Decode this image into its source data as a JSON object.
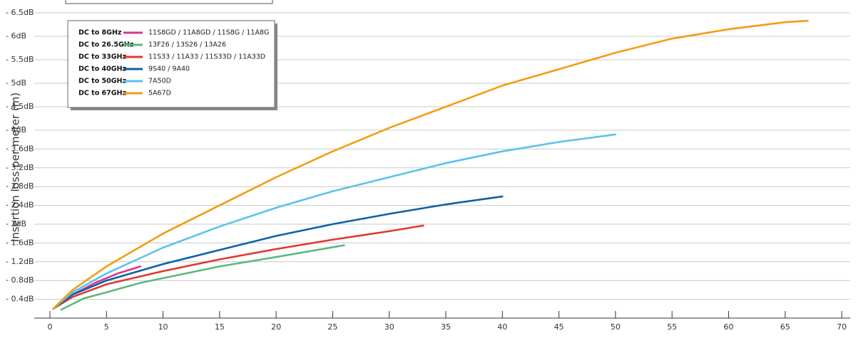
{
  "chart_data": {
    "type": "line",
    "y_label": "Insertion loss per meter (m)",
    "xlim": [
      0,
      70
    ],
    "xticks": [
      0,
      5,
      10,
      15,
      20,
      25,
      30,
      35,
      40,
      45,
      50,
      55,
      60,
      65,
      70
    ],
    "ylim": [
      0,
      -6.5
    ],
    "yticks": [
      {
        "value": -0.4,
        "label": "- 0.4dB"
      },
      {
        "value": -0.8,
        "label": "- 0.8dB"
      },
      {
        "value": -1.2,
        "label": "- 1.2dB"
      },
      {
        "value": -1.6,
        "label": "- 1.6dB"
      },
      {
        "value": -2,
        "label": "- 2dB"
      },
      {
        "value": -2.4,
        "label": "- 2.4dB"
      },
      {
        "value": -2.8,
        "label": "- 2.8dB"
      },
      {
        "value": -3.2,
        "label": "- 3.2dB"
      },
      {
        "value": -3.6,
        "label": "- 3.6dB"
      },
      {
        "value": -4,
        "label": "- 4dB"
      },
      {
        "value": -4.5,
        "label": "- 4.5dB"
      },
      {
        "value": -5,
        "label": "- 5dB"
      },
      {
        "value": -5.5,
        "label": "- 5.5dB"
      },
      {
        "value": -6,
        "label": "- 6dB"
      },
      {
        "value": -6.5,
        "label": "- 6.5dB"
      }
    ],
    "grid": true,
    "series": [
      {
        "band": "DC to 8GHz",
        "name": "11S8GD / 11A8GD / 11S8G / 11A8G",
        "color": "#d9368f",
        "x": [
          0.3,
          2,
          4,
          6,
          8
        ],
        "values": [
          -0.2,
          -0.5,
          -0.75,
          -0.95,
          -1.1
        ]
      },
      {
        "band": "DC to 26.5GHz",
        "name": "13F26 / 13S26 / 13A26",
        "color": "#5cb87e",
        "x": [
          1,
          3,
          5,
          8,
          10,
          15,
          20,
          26
        ],
        "values": [
          -0.18,
          -0.42,
          -0.55,
          -0.75,
          -0.85,
          -1.1,
          -1.3,
          -1.55
        ]
      },
      {
        "band": "DC to 33GHz",
        "name": "11S33 / 11A33 / 11S33D / 11A33D",
        "color": "#e0382c",
        "x": [
          0.3,
          2,
          5,
          10,
          15,
          20,
          25,
          30,
          33
        ],
        "values": [
          -0.2,
          -0.45,
          -0.72,
          -1.0,
          -1.25,
          -1.47,
          -1.67,
          -1.85,
          -1.97
        ]
      },
      {
        "band": "DC to 40GHz",
        "name": "9S40 / 9A40",
        "color": "#0b62a8",
        "x": [
          0.3,
          2,
          5,
          10,
          15,
          20,
          25,
          30,
          35,
          40
        ],
        "values": [
          -0.2,
          -0.5,
          -0.8,
          -1.15,
          -1.45,
          -1.75,
          -2.0,
          -2.22,
          -2.42,
          -2.59
        ]
      },
      {
        "band": "DC to 50GHz",
        "name": "7A50D",
        "color": "#5bc2ec",
        "x": [
          0.3,
          2,
          5,
          10,
          15,
          20,
          25,
          30,
          35,
          40,
          45,
          50
        ],
        "values": [
          -0.2,
          -0.55,
          -0.95,
          -1.5,
          -1.95,
          -2.35,
          -2.7,
          -3.0,
          -3.3,
          -3.55,
          -3.75,
          -3.91
        ]
      },
      {
        "band": "DC to 67GHz",
        "name": "5A67D",
        "color": "#f39c12",
        "x": [
          0.3,
          2,
          5,
          10,
          15,
          20,
          25,
          30,
          35,
          40,
          45,
          50,
          55,
          60,
          65,
          67
        ],
        "values": [
          -0.2,
          -0.6,
          -1.1,
          -1.8,
          -2.4,
          -3.0,
          -3.55,
          -4.05,
          -4.5,
          -4.95,
          -5.3,
          -5.65,
          -5.95,
          -6.15,
          -6.3,
          -6.33
        ]
      }
    ]
  }
}
